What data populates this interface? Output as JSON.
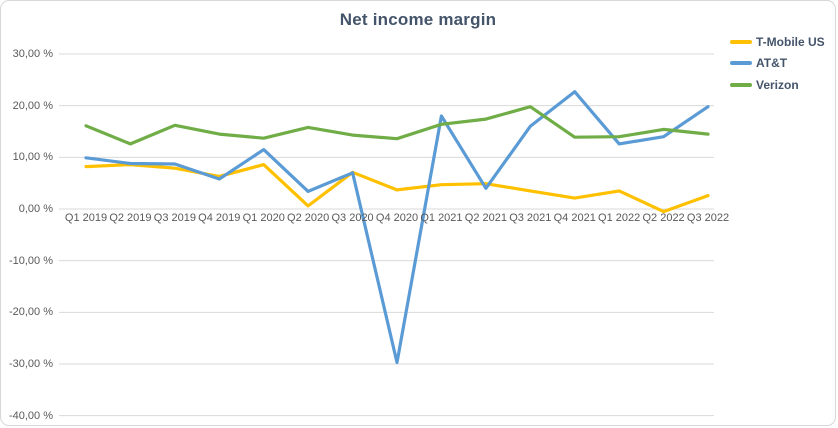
{
  "title": "Net income margin",
  "chart_data": {
    "type": "line",
    "title": "Net income margin",
    "categories": [
      "Q1 2019",
      "Q2 2019",
      "Q3 2019",
      "Q4 2019",
      "Q1 2020",
      "Q2 2020",
      "Q3 2020",
      "Q4 2020",
      "Q1 2021",
      "Q2 2021",
      "Q3 2021",
      "Q4 2021",
      "Q1 2022",
      "Q2 2022",
      "Q3 2022"
    ],
    "series": [
      {
        "name": "T-Mobile US",
        "color": "#FFC000",
        "values": [
          8.2,
          8.6,
          7.9,
          6.3,
          8.6,
          0.6,
          7.1,
          3.7,
          4.7,
          4.9,
          3.5,
          2.1,
          3.5,
          -0.5,
          2.6
        ]
      },
      {
        "name": "AT&T",
        "color": "#5B9BD5",
        "values": [
          9.9,
          8.8,
          8.7,
          5.8,
          11.5,
          3.4,
          7.0,
          -29.7,
          18.0,
          4.0,
          16.0,
          22.7,
          12.6,
          14.0,
          19.8
        ]
      },
      {
        "name": "Verizon",
        "color": "#70AD47",
        "values": [
          16.1,
          12.6,
          16.2,
          14.5,
          13.7,
          15.8,
          14.3,
          13.6,
          16.4,
          17.4,
          19.8,
          13.9,
          14.0,
          15.4,
          14.5
        ]
      }
    ],
    "y_ticks": [
      {
        "label": "30,00 %",
        "value": 30
      },
      {
        "label": "20,00 %",
        "value": 20
      },
      {
        "label": "10,00 %",
        "value": 10
      },
      {
        "label": "0,00 %",
        "value": 0
      },
      {
        "label": "-10,00 %",
        "value": -10
      },
      {
        "label": "-20,00 %",
        "value": -20
      },
      {
        "label": "-30,00 %",
        "value": -30
      },
      {
        "label": "-40,00 %",
        "value": -40
      }
    ],
    "ylim": [
      -40,
      30
    ],
    "value_format": "percent-comma",
    "grid": true,
    "gridline_color": "#d9d9d9",
    "legend_position": "top-right",
    "title_color": "#44546a",
    "axis_text_color": "#595959"
  }
}
